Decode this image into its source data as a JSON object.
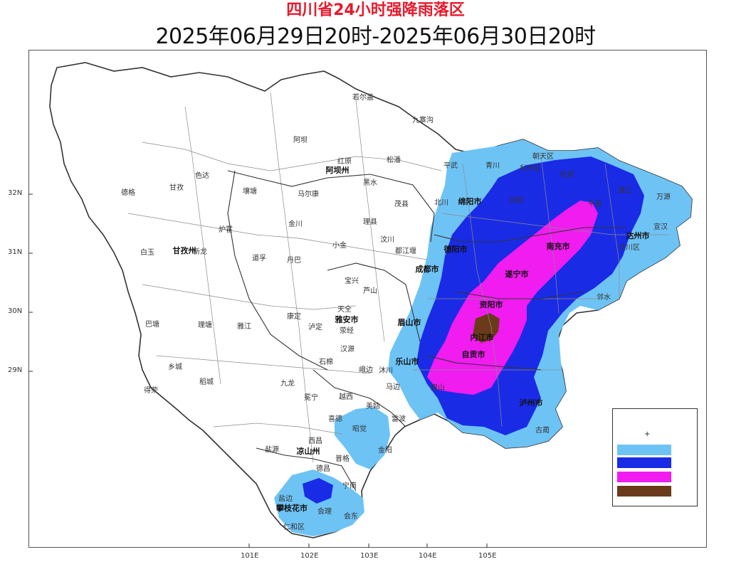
{
  "title": "四川省24小时强降雨落区",
  "subtitle": "2025年06月29日20时-2025年06月30日20时",
  "axes": {
    "lat_labels": [
      "32N",
      "31N",
      "30N",
      "29N"
    ],
    "lon_labels": [
      "101E",
      "102E",
      "103E",
      "104E",
      "105E"
    ]
  },
  "legend": {
    "marker": "+",
    "colors": [
      "#6ec3f5",
      "#1a2be6",
      "#f01cf0",
      "#6b3a1a"
    ]
  },
  "colors": {
    "light_blue": "#6ec3f5",
    "blue": "#1a2be6",
    "magenta": "#f01cf0",
    "brown": "#6b3a1a",
    "title_red": "#e8192b"
  },
  "places": [
    {
      "name": "若尔盖"
    },
    {
      "name": "九寨沟"
    },
    {
      "name": "阿坝"
    },
    {
      "name": "红原"
    },
    {
      "name": "阿坝州"
    },
    {
      "name": "松潘"
    },
    {
      "name": "平武"
    },
    {
      "name": "青川"
    },
    {
      "name": "朝天区"
    },
    {
      "name": "利州区"
    },
    {
      "name": "旺苍"
    },
    {
      "name": "通江"
    },
    {
      "name": "万源"
    },
    {
      "name": "色达"
    },
    {
      "name": "德格"
    },
    {
      "name": "甘孜"
    },
    {
      "name": "壤塘"
    },
    {
      "name": "马尔康"
    },
    {
      "name": "黑水"
    },
    {
      "name": "茂县"
    },
    {
      "name": "北川"
    },
    {
      "name": "绵阳市"
    },
    {
      "name": "剑阁"
    },
    {
      "name": "平昌"
    },
    {
      "name": "宣汉"
    },
    {
      "name": "达州市"
    },
    {
      "name": "达川区"
    },
    {
      "name": "金川"
    },
    {
      "name": "理县"
    },
    {
      "name": "炉霍"
    },
    {
      "name": "白玉"
    },
    {
      "name": "甘孜州"
    },
    {
      "name": "新龙"
    },
    {
      "name": "道孚"
    },
    {
      "name": "丹巴"
    },
    {
      "name": "小金"
    },
    {
      "name": "汶川"
    },
    {
      "name": "都江堰"
    },
    {
      "name": "德阳市"
    },
    {
      "name": "南充市"
    },
    {
      "name": "遂宁市"
    },
    {
      "name": "成都市"
    },
    {
      "name": "宝兴"
    },
    {
      "name": "芦山"
    },
    {
      "name": "巴塘"
    },
    {
      "name": "理塘"
    },
    {
      "name": "雅江"
    },
    {
      "name": "康定"
    },
    {
      "name": "天全"
    },
    {
      "name": "雅安市"
    },
    {
      "name": "荥经"
    },
    {
      "name": "泸定"
    },
    {
      "name": "资阳市"
    },
    {
      "name": "内江市"
    },
    {
      "name": "自贡市"
    },
    {
      "name": "眉山市"
    },
    {
      "name": "乐山市"
    },
    {
      "name": "汉源"
    },
    {
      "name": "石棉"
    },
    {
      "name": "乡城"
    },
    {
      "name": "稻城"
    },
    {
      "name": "得荣"
    },
    {
      "name": "九龙"
    },
    {
      "name": "冕宁"
    },
    {
      "name": "越西"
    },
    {
      "name": "美姑"
    },
    {
      "name": "雷波"
    },
    {
      "name": "屏山"
    },
    {
      "name": "泸州市"
    },
    {
      "name": "古蔺"
    },
    {
      "name": "喜德"
    },
    {
      "name": "昭觉"
    },
    {
      "name": "西昌"
    },
    {
      "name": "凉山州"
    },
    {
      "name": "盐源"
    },
    {
      "name": "金阳"
    },
    {
      "name": "普格"
    },
    {
      "name": "宁南"
    },
    {
      "name": "德昌"
    },
    {
      "name": "盐边"
    },
    {
      "name": "攀枝花市"
    },
    {
      "name": "会理"
    },
    {
      "name": "会东"
    },
    {
      "name": "仁和区"
    },
    {
      "name": "邻水"
    },
    {
      "name": "沐川"
    },
    {
      "name": "马边"
    },
    {
      "name": "峨边"
    }
  ]
}
